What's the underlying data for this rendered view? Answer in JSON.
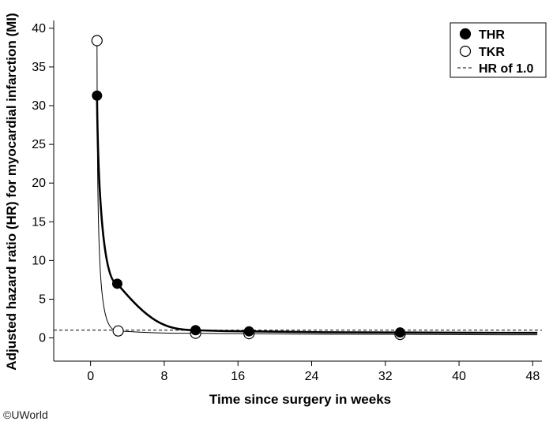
{
  "chart_data": {
    "type": "line",
    "xlabel": "Time since surgery in weeks",
    "ylabel": "Adjusted hazard ratio (HR) for myocardial infarction (MI)",
    "xlim": [
      -4,
      49
    ],
    "ylim": [
      -3,
      41
    ],
    "x_ticks": [
      0,
      8,
      16,
      24,
      32,
      40,
      48
    ],
    "y_ticks": [
      0,
      5,
      10,
      15,
      20,
      25,
      30,
      35,
      40
    ],
    "reference_line": {
      "label": "HR of 1.0",
      "y": 1.0,
      "style": "dashed"
    },
    "legend_position": "top-right",
    "series": [
      {
        "name": "THR",
        "marker": "filled-circle",
        "line": "thick",
        "color": "#000000",
        "points": [
          {
            "x": 0.7,
            "y": 31.3
          },
          {
            "x": 2.9,
            "y": 7.0
          },
          {
            "x": 11.4,
            "y": 1.0
          },
          {
            "x": 17.2,
            "y": 0.85
          },
          {
            "x": 33.6,
            "y": 0.7
          }
        ]
      },
      {
        "name": "TKR",
        "marker": "open-circle",
        "line": "thin",
        "color": "#000000",
        "points": [
          {
            "x": 0.7,
            "y": 38.4
          },
          {
            "x": 3.0,
            "y": 0.9
          },
          {
            "x": 11.4,
            "y": 0.6
          },
          {
            "x": 17.2,
            "y": 0.55
          },
          {
            "x": 33.6,
            "y": 0.45
          }
        ]
      }
    ]
  },
  "copyright": "©UWorld"
}
